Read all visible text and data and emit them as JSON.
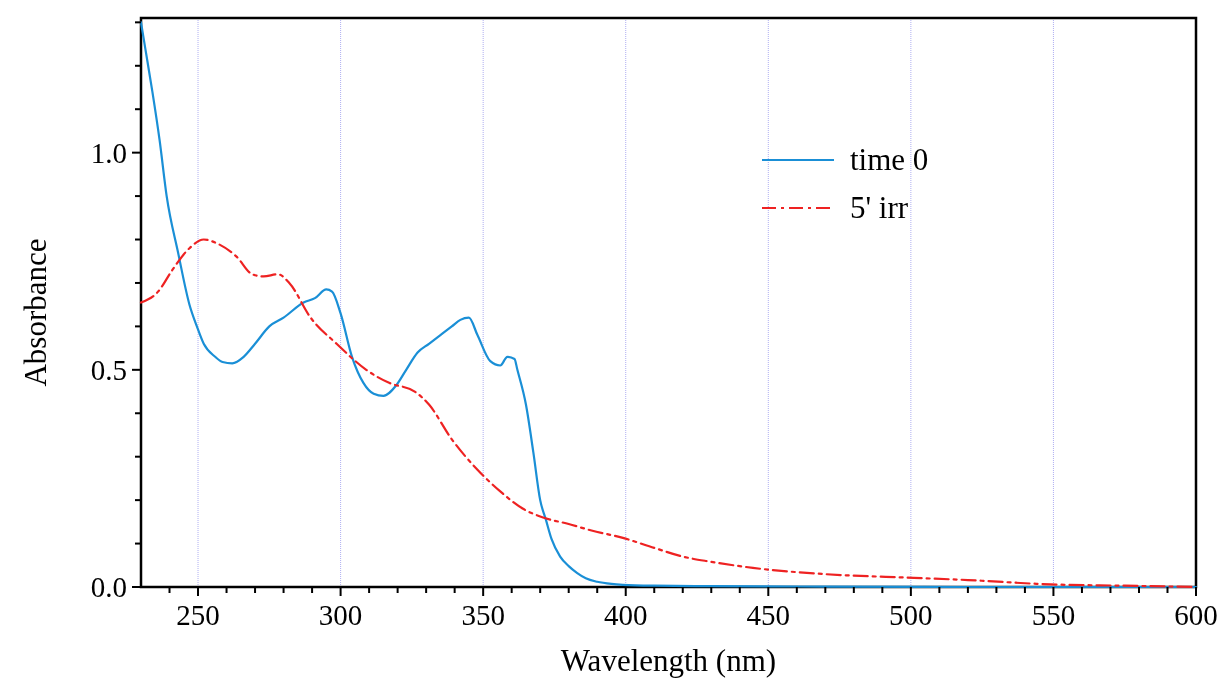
{
  "chart_data": {
    "type": "line",
    "xlabel": "Wavelength (nm)",
    "ylabel": "Absorbance",
    "xlim": [
      230,
      600
    ],
    "ylim": [
      0,
      1.31
    ],
    "xticks": [
      {
        "value": 240,
        "label": null
      },
      250,
      {
        "value": 260,
        "label": null
      },
      {
        "value": 270,
        "label": null
      },
      {
        "value": 280,
        "label": null
      },
      {
        "value": 290,
        "label": null
      },
      300,
      {
        "value": 310,
        "label": null
      },
      {
        "value": 320,
        "label": null
      },
      {
        "value": 330,
        "label": null
      },
      {
        "value": 340,
        "label": null
      },
      350,
      {
        "value": 360,
        "label": null
      },
      {
        "value": 370,
        "label": null
      },
      {
        "value": 380,
        "label": null
      },
      {
        "value": 390,
        "label": null
      },
      400,
      {
        "value": 410,
        "label": null
      },
      {
        "value": 420,
        "label": null
      },
      {
        "value": 430,
        "label": null
      },
      {
        "value": 440,
        "label": null
      },
      450,
      {
        "value": 460,
        "label": null
      },
      {
        "value": 470,
        "label": null
      },
      {
        "value": 480,
        "label": null
      },
      {
        "value": 490,
        "label": null
      },
      500,
      {
        "value": 510,
        "label": null
      },
      {
        "value": 520,
        "label": null
      },
      {
        "value": 530,
        "label": null
      },
      {
        "value": 540,
        "label": null
      },
      550,
      {
        "value": 560,
        "label": null
      },
      {
        "value": 570,
        "label": null
      },
      {
        "value": 580,
        "label": null
      },
      {
        "value": 590,
        "label": null
      },
      600
    ],
    "yticks": [
      {
        "value": 0,
        "label": "0.0"
      },
      {
        "value": 0.1,
        "label": null
      },
      {
        "value": 0.2,
        "label": null
      },
      {
        "value": 0.3,
        "label": null
      },
      {
        "value": 0.4,
        "label": null
      },
      0.5,
      {
        "value": 0.6,
        "label": null
      },
      {
        "value": 0.7,
        "label": null
      },
      {
        "value": 0.8,
        "label": null
      },
      {
        "value": 0.9,
        "label": null
      },
      {
        "value": 1,
        "label": "1.0"
      },
      {
        "value": 1.1,
        "label": null
      },
      {
        "value": 1.2,
        "label": null
      },
      {
        "value": 1.3,
        "label": null
      }
    ],
    "grid": "x",
    "legend": "top right",
    "series": [
      {
        "name": "time 0",
        "color": "#1a8fd6",
        "line_style": "solid",
        "x": [
          230,
          231.5,
          234,
          236.5,
          239,
          243,
          247,
          249.6,
          252,
          256,
          258.6,
          262,
          266,
          270,
          275,
          280,
          287,
          291,
          295,
          297,
          300,
          304,
          308,
          311.6,
          315,
          319.6,
          323,
          327,
          331,
          335,
          339,
          342,
          345,
          348,
          352.5,
          356,
          358.5,
          361,
          362,
          365,
          367.6,
          370,
          372,
          374,
          377,
          380,
          383,
          386,
          390,
          395,
          399,
          410,
          430,
          470,
          520,
          600
        ],
        "values": [
          1.3,
          1.24,
          1.14,
          1.03,
          0.9,
          0.77,
          0.65,
          0.6,
          0.56,
          0.53,
          0.518,
          0.515,
          0.53,
          0.56,
          0.6,
          0.62,
          0.655,
          0.665,
          0.685,
          0.68,
          0.63,
          0.53,
          0.47,
          0.445,
          0.44,
          0.465,
          0.5,
          0.54,
          0.56,
          0.58,
          0.6,
          0.615,
          0.62,
          0.58,
          0.52,
          0.51,
          0.53,
          0.525,
          0.5,
          0.42,
          0.31,
          0.2,
          0.155,
          0.11,
          0.07,
          0.048,
          0.032,
          0.02,
          0.012,
          0.007,
          0.005,
          0.003,
          0.002,
          0.001,
          0,
          0
        ]
      },
      {
        "name": "5' irr",
        "color": "#ee2222",
        "line_style": "dashed",
        "x": [
          230,
          236,
          241,
          247,
          252,
          257,
          263.6,
          269,
          273,
          278,
          282,
          289.5,
          298.6,
          309,
          317,
          326,
          331,
          339,
          348,
          356,
          364,
          371,
          380,
          388,
          399,
          410,
          420,
          430,
          444.6,
          469,
          501,
          520,
          549,
          575,
          600
        ],
        "values": [
          0.655,
          0.68,
          0.73,
          0.78,
          0.8,
          0.79,
          0.76,
          0.72,
          0.715,
          0.72,
          0.7,
          0.62,
          0.56,
          0.5,
          0.47,
          0.45,
          0.42,
          0.34,
          0.27,
          0.22,
          0.18,
          0.16,
          0.145,
          0.13,
          0.113,
          0.09,
          0.07,
          0.058,
          0.044,
          0.03,
          0.021,
          0.016,
          0.006,
          0.003,
          0
        ]
      }
    ]
  }
}
